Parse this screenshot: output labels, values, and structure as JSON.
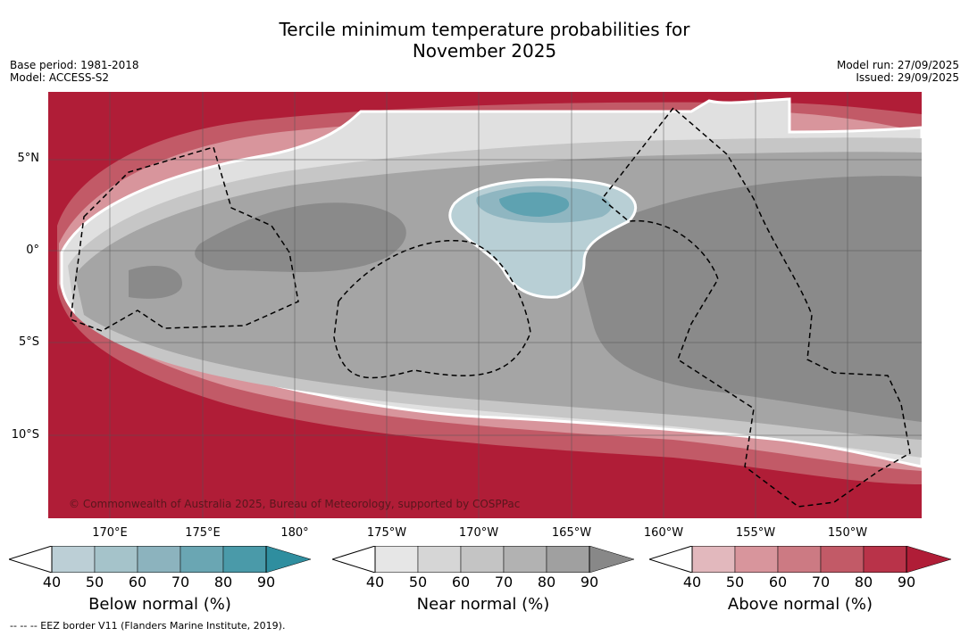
{
  "title_line1": "Tercile minimum temperature probabilities for",
  "title_line2": "November 2025",
  "meta_left": {
    "base_period": "Base period: 1981-2018",
    "model": "Model: ACCESS-S2"
  },
  "meta_right": {
    "model_run": "Model run: 27/09/2025",
    "issued": "Issued: 29/09/2025"
  },
  "lat_labels": [
    "5°N",
    "0°",
    "5°S",
    "10°S"
  ],
  "lon_labels": [
    "170°E",
    "175°E",
    "180°",
    "175°W",
    "170°W",
    "165°W",
    "160°W",
    "155°W",
    "150°W"
  ],
  "copyright": "© Commonwealth of Australia 2025, Bureau of Meteorology, supported by COSPPac",
  "colorbars": [
    {
      "title": "Below normal (%)",
      "ticks": [
        "40",
        "50",
        "60",
        "70",
        "80",
        "90"
      ],
      "colors": [
        "#bccfd6",
        "#a5c3ca",
        "#8cb3be",
        "#6aa6b3",
        "#4a9aa9",
        "#2f8e9f"
      ]
    },
    {
      "title": "Near normal (%)",
      "ticks": [
        "40",
        "50",
        "60",
        "70",
        "80",
        "90"
      ],
      "colors": [
        "#e6e6e6",
        "#d6d6d6",
        "#c4c4c4",
        "#b2b2b2",
        "#a0a0a0",
        "#888888"
      ]
    },
    {
      "title": "Above normal (%)",
      "ticks": [
        "40",
        "50",
        "60",
        "70",
        "80",
        "90"
      ],
      "colors": [
        "#e2b8bd",
        "#d8959c",
        "#cc7a83",
        "#c25a67",
        "#b93349",
        "#b01d37"
      ]
    }
  ],
  "footnote": "-- -- -- EEZ border V11 (Flanders Marine Institute, 2019).",
  "colors": {
    "above_strong": "#b01d37",
    "near_dark": "#888888",
    "below_strong": "#2f8e9f"
  }
}
